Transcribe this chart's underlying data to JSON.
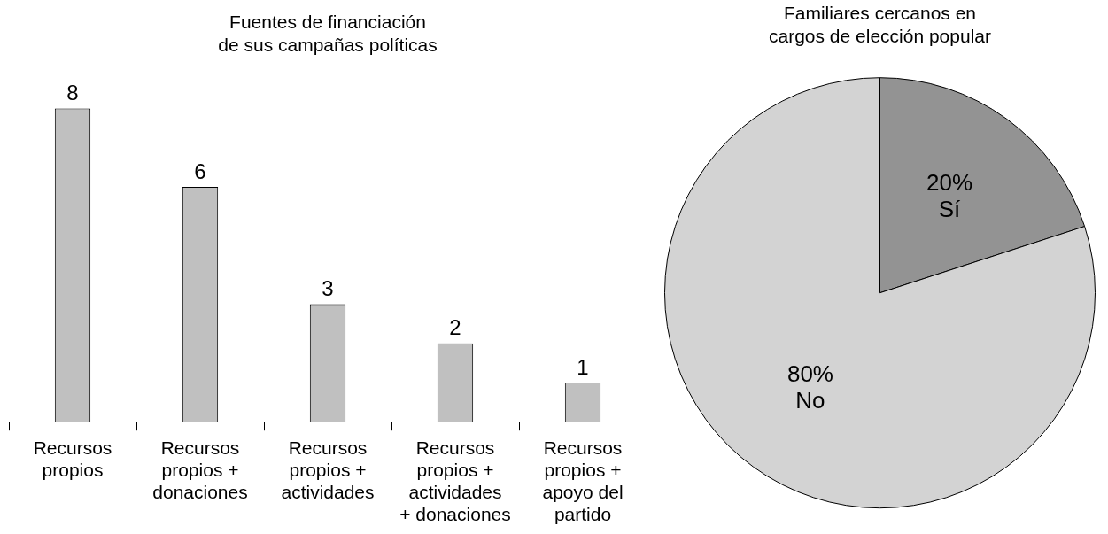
{
  "chart_data": [
    {
      "type": "bar",
      "title": "Fuentes de financiación de sus campañas políticas",
      "categories": [
        "Recursos propios",
        "Recursos propios + donaciones",
        "Recursos propios + actividades",
        "Recursos propios + actividades + donaciones",
        "Recursos propios + apoyo del partido"
      ],
      "values": [
        8,
        6,
        3,
        2,
        1
      ],
      "color": "#c0c0c0",
      "data_labels": true,
      "grid": false,
      "legend": false
    },
    {
      "type": "pie",
      "title": "Familiares cercanos en cargos de elección popular",
      "categories": [
        "Sí",
        "No"
      ],
      "values": [
        20,
        80
      ],
      "colors": [
        "#939393",
        "#d3d3d3"
      ],
      "value_labels": [
        "20%",
        "80%"
      ],
      "legend": false
    }
  ]
}
